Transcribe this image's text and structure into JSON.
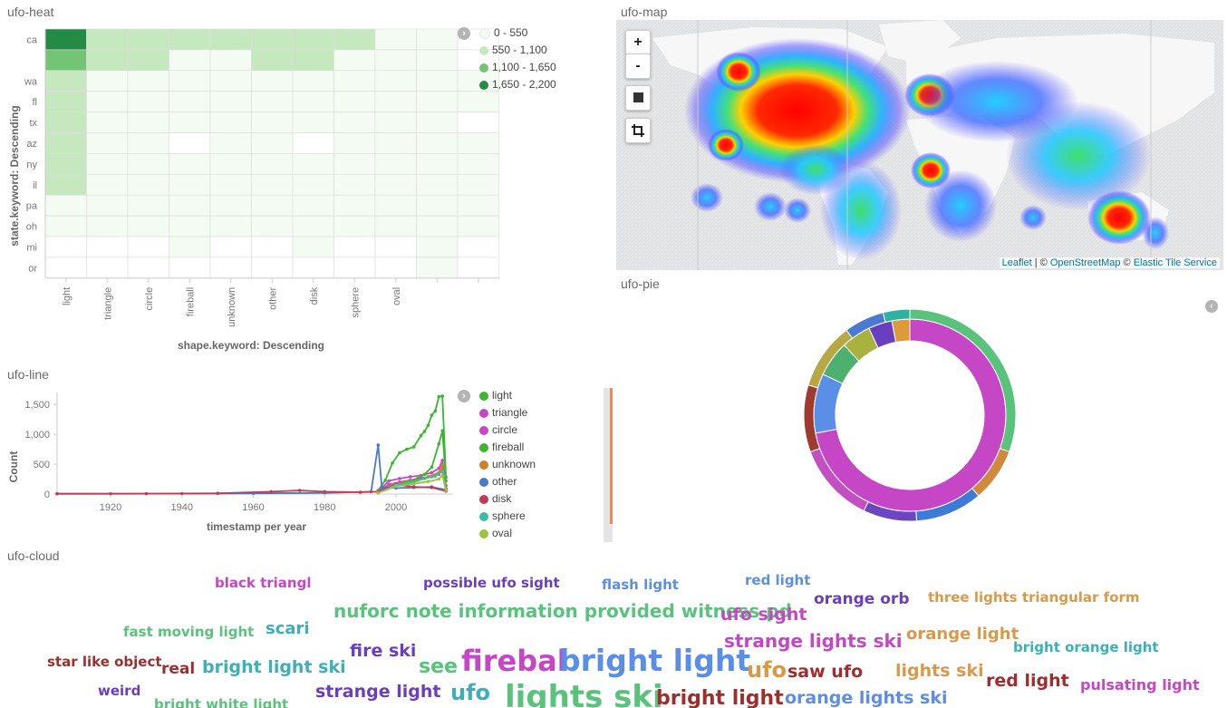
{
  "heat": {
    "title": "ufo-heat",
    "y_axis_title": "state.keyword: Descending",
    "x_axis_title": "shape.keyword: Descending",
    "legend": [
      {
        "label": "0 - 550",
        "color": "#f4fbf2"
      },
      {
        "label": "550 - 1,100",
        "color": "#c5e8bf"
      },
      {
        "label": "1,100 - 1,650",
        "color": "#74c476"
      },
      {
        "label": "1,650 - 2,200",
        "color": "#238b45"
      }
    ]
  },
  "map": {
    "title": "ufo-map",
    "zoom_in": "+",
    "zoom_out": "-",
    "attribution_leaflet": "Leaflet",
    "attribution_sep": " | © ",
    "attribution_osm": "OpenStreetMap",
    "attribution_sep2": " © ",
    "attribution_elastic": "Elastic Tile Service"
  },
  "pie": {
    "title": "ufo-pie"
  },
  "line": {
    "title": "ufo-line",
    "legend": [
      {
        "label": "light",
        "color": "#3cb531"
      },
      {
        "label": "triangle",
        "color": "#c647c6"
      },
      {
        "label": "circle",
        "color": "#c647c6"
      },
      {
        "label": "fireball",
        "color": "#3cb531"
      },
      {
        "label": "unknown",
        "color": "#c8812c"
      },
      {
        "label": "other",
        "color": "#4a79c9"
      },
      {
        "label": "disk",
        "color": "#c23a56"
      },
      {
        "label": "sphere",
        "color": "#3bbca5"
      },
      {
        "label": "oval",
        "color": "#9bc43e"
      }
    ]
  },
  "chart_data": [
    {
      "type": "heatmap",
      "title": "ufo-heat",
      "xlabel": "shape.keyword: Descending",
      "ylabel": "state.keyword: Descending",
      "x_categories": [
        "light",
        "triangle",
        "circle",
        "fireball",
        "unknown",
        "other",
        "disk",
        "sphere",
        "oval",
        "",
        ""
      ],
      "y_categories": [
        "ca",
        "",
        "wa",
        "fl",
        "tx",
        "az",
        "ny",
        "il",
        "pa",
        "oh",
        "mi",
        "or"
      ],
      "bins": [
        "0 - 550",
        "550 - 1,100",
        "1,100 - 1,650",
        "1,650 - 2,200"
      ],
      "cells": [
        [
          3,
          1,
          1,
          1,
          1,
          1,
          1,
          1,
          0,
          0,
          -1
        ],
        [
          2,
          1,
          1,
          0,
          0,
          1,
          1,
          0,
          0,
          0,
          -1
        ],
        [
          1,
          0,
          0,
          0,
          0,
          0,
          0,
          0,
          0,
          0,
          0
        ],
        [
          1,
          0,
          0,
          0,
          0,
          0,
          0,
          0,
          0,
          0,
          0
        ],
        [
          1,
          0,
          0,
          0,
          0,
          0,
          0,
          0,
          0,
          0,
          -1
        ],
        [
          1,
          0,
          0,
          -1,
          0,
          0,
          -1,
          0,
          0,
          0,
          0
        ],
        [
          1,
          0,
          0,
          0,
          0,
          0,
          0,
          0,
          0,
          0,
          0
        ],
        [
          1,
          0,
          0,
          0,
          0,
          0,
          0,
          0,
          0,
          0,
          0
        ],
        [
          0,
          0,
          0,
          0,
          0,
          0,
          0,
          0,
          0,
          0,
          0
        ],
        [
          0,
          0,
          0,
          0,
          0,
          0,
          0,
          0,
          0,
          0,
          0
        ],
        [
          -1,
          -1,
          -1,
          0,
          -1,
          -1,
          0,
          -1,
          -1,
          0,
          -1
        ],
        [
          -1,
          -1,
          -1,
          -1,
          -1,
          -1,
          -1,
          -1,
          -1,
          0,
          -1
        ]
      ]
    },
    {
      "type": "line",
      "title": "ufo-line",
      "xlabel": "timestamp per year",
      "ylabel": "Count",
      "xlim": [
        1905,
        2016
      ],
      "ylim": [
        0,
        1700
      ],
      "x_ticks": [
        "1920",
        "1940",
        "1960",
        "1980",
        "2000"
      ],
      "y_ticks": [
        "0",
        "500",
        "1,000",
        "1,500"
      ],
      "series": [
        {
          "name": "light",
          "color": "#3cb531",
          "points": [
            [
              1995,
              60
            ],
            [
              1997,
              230
            ],
            [
              1999,
              520
            ],
            [
              2001,
              690
            ],
            [
              2003,
              750
            ],
            [
              2005,
              790
            ],
            [
              2007,
              980
            ],
            [
              2008,
              1050
            ],
            [
              2009,
              1150
            ],
            [
              2010,
              1320
            ],
            [
              2011,
              1390
            ],
            [
              2012,
              1630
            ],
            [
              2013,
              1640
            ],
            [
              2014,
              280
            ]
          ]
        },
        {
          "name": "triangle",
          "color": "#c647c6",
          "points": [
            [
              1995,
              40
            ],
            [
              1998,
              220
            ],
            [
              2001,
              260
            ],
            [
              2004,
              290
            ],
            [
              2007,
              310
            ],
            [
              2010,
              360
            ],
            [
              2012,
              430
            ],
            [
              2013,
              560
            ],
            [
              2014,
              140
            ]
          ]
        },
        {
          "name": "circle",
          "color": "#c647c6",
          "points": [
            [
              1995,
              30
            ],
            [
              1998,
              160
            ],
            [
              2001,
              200
            ],
            [
              2004,
              230
            ],
            [
              2007,
              270
            ],
            [
              2010,
              290
            ],
            [
              2012,
              330
            ],
            [
              2013,
              400
            ],
            [
              2014,
              90
            ]
          ]
        },
        {
          "name": "fireball",
          "color": "#3cb531",
          "points": [
            [
              1995,
              20
            ],
            [
              1999,
              140
            ],
            [
              2003,
              210
            ],
            [
              2006,
              260
            ],
            [
              2008,
              330
            ],
            [
              2010,
              450
            ],
            [
              2012,
              840
            ],
            [
              2013,
              1060
            ],
            [
              2014,
              220
            ]
          ]
        },
        {
          "name": "unknown",
          "color": "#c8812c",
          "points": [
            [
              1995,
              25
            ],
            [
              1999,
              160
            ],
            [
              2003,
              190
            ],
            [
              2006,
              230
            ],
            [
              2009,
              290
            ],
            [
              2012,
              360
            ],
            [
              2013,
              480
            ],
            [
              2014,
              90
            ]
          ]
        },
        {
          "name": "other",
          "color": "#4a79c9",
          "points": [
            [
              1905,
              5
            ],
            [
              1920,
              5
            ],
            [
              1940,
              8
            ],
            [
              1960,
              12
            ],
            [
              1980,
              20
            ],
            [
              1993,
              40
            ],
            [
              1995,
              820
            ],
            [
              1996,
              120
            ],
            [
              2000,
              100
            ],
            [
              2005,
              110
            ],
            [
              2010,
              120
            ],
            [
              2014,
              70
            ]
          ]
        },
        {
          "name": "disk",
          "color": "#c23a56",
          "points": [
            [
              1905,
              4
            ],
            [
              1930,
              6
            ],
            [
              1950,
              12
            ],
            [
              1965,
              40
            ],
            [
              1973,
              60
            ],
            [
              1980,
              40
            ],
            [
              1990,
              30
            ],
            [
              1995,
              40
            ],
            [
              2000,
              160
            ],
            [
              2005,
              120
            ],
            [
              2010,
              110
            ],
            [
              2014,
              50
            ]
          ]
        },
        {
          "name": "sphere",
          "color": "#3bbca5",
          "points": [
            [
              1995,
              20
            ],
            [
              2000,
              150
            ],
            [
              2005,
              200
            ],
            [
              2008,
              260
            ],
            [
              2011,
              300
            ],
            [
              2013,
              380
            ],
            [
              2014,
              80
            ]
          ]
        },
        {
          "name": "oval",
          "color": "#9bc43e",
          "points": [
            [
              1995,
              20
            ],
            [
              2000,
              130
            ],
            [
              2005,
              170
            ],
            [
              2009,
              210
            ],
            [
              2012,
              250
            ],
            [
              2013,
              310
            ],
            [
              2014,
              60
            ]
          ]
        }
      ]
    },
    {
      "type": "pie",
      "title": "ufo-pie",
      "rings": [
        {
          "slices": [
            {
              "value": 72,
              "color": "#c647c6"
            },
            {
              "value": 10,
              "color": "#5b8ee6"
            },
            {
              "value": 6,
              "color": "#4db06e"
            },
            {
              "value": 5,
              "color": "#a7b33e"
            },
            {
              "value": 4,
              "color": "#6a3fbf"
            },
            {
              "value": 3,
              "color": "#dd9a3a"
            }
          ]
        },
        {
          "slices": [
            {
              "value": 30,
              "color": "#59c27b"
            },
            {
              "value": 8,
              "color": "#d08a3e"
            },
            {
              "value": 10,
              "color": "#3d7bd6"
            },
            {
              "value": 8,
              "color": "#6b46c1"
            },
            {
              "value": 12,
              "color": "#c34fc3"
            },
            {
              "value": 10,
              "color": "#9e3a2e"
            },
            {
              "value": 10,
              "color": "#b8a745"
            },
            {
              "value": 6,
              "color": "#4b7ad0"
            },
            {
              "value": 4,
              "color": "#2eb1a2"
            }
          ]
        }
      ]
    },
    {
      "type": "table",
      "title": "ufo-cloud"
    }
  ],
  "cloud": {
    "title": "ufo-cloud",
    "words": [
      {
        "text": "black triangl",
        "color": "#c647c6",
        "size": 15
      },
      {
        "text": "possible ufo sight",
        "color": "#6a3fbf",
        "size": 15
      },
      {
        "text": "flash light",
        "color": "#5b8ee6",
        "size": 15
      },
      {
        "text": "red light",
        "color": "#5b8ee6",
        "size": 15
      },
      {
        "text": "nuforc note information provided witness pd",
        "color": "#59c27b",
        "size": 20
      },
      {
        "text": "orange orb",
        "color": "#6a3fbf",
        "size": 17
      },
      {
        "text": "three lights triangular form",
        "color": "#d89a4a",
        "size": 15
      },
      {
        "text": "ufo sight",
        "color": "#c647c6",
        "size": 19
      },
      {
        "text": "fast moving light",
        "color": "#59c27b",
        "size": 15
      },
      {
        "text": "scari",
        "color": "#3bb0b8",
        "size": 18
      },
      {
        "text": "strange lights ski",
        "color": "#c647c6",
        "size": 20
      },
      {
        "text": "orange light",
        "color": "#d89a4a",
        "size": 18
      },
      {
        "text": "bright orange light",
        "color": "#3bb0b8",
        "size": 15
      },
      {
        "text": "fire ski",
        "color": "#6a3fbf",
        "size": 19
      },
      {
        "text": "firebal",
        "color": "#c647c6",
        "size": 32
      },
      {
        "text": "bright light",
        "color": "#5b8ee6",
        "size": 33
      },
      {
        "text": "star like object",
        "color": "#9e2e2e",
        "size": 15
      },
      {
        "text": "real",
        "color": "#9e2e2e",
        "size": 17
      },
      {
        "text": "bright light ski",
        "color": "#3bb0b8",
        "size": 19
      },
      {
        "text": "see",
        "color": "#59c27b",
        "size": 22
      },
      {
        "text": "ufo",
        "color": "#d89a4a",
        "size": 24
      },
      {
        "text": "saw ufo",
        "color": "#9e2e2e",
        "size": 19
      },
      {
        "text": "lights ski",
        "color": "#d89a4a",
        "size": 19
      },
      {
        "text": "red light",
        "color": "#9e2e2e",
        "size": 19
      },
      {
        "text": "pulsating light",
        "color": "#c647c6",
        "size": 16
      },
      {
        "text": "weird",
        "color": "#6a3fbf",
        "size": 15
      },
      {
        "text": "bright white light",
        "color": "#59c27b",
        "size": 15
      },
      {
        "text": "strange light",
        "color": "#6a3fbf",
        "size": 19
      },
      {
        "text": "ufo",
        "color": "#3bb0b8",
        "size": 24
      },
      {
        "text": "lights ski",
        "color": "#59c27b",
        "size": 34
      },
      {
        "text": "bright light",
        "color": "#9e2e2e",
        "size": 22
      },
      {
        "text": "orange lights ski",
        "color": "#5b8ee6",
        "size": 19
      }
    ]
  }
}
